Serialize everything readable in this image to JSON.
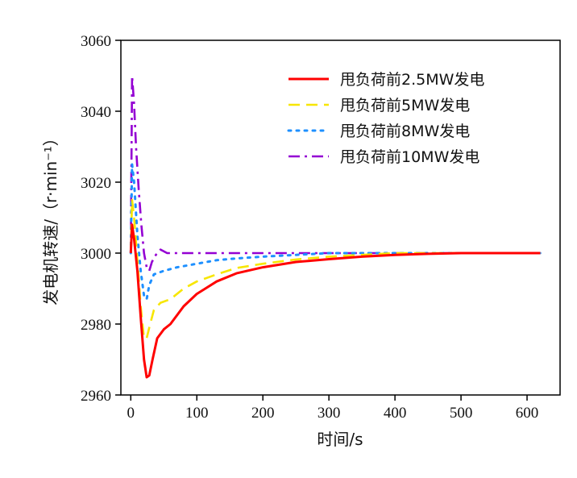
{
  "chart_data": {
    "type": "line",
    "title": "",
    "xlabel": "时间/s",
    "ylabel": "发电机转速/（r·min⁻¹）",
    "xlim": [
      -15,
      650
    ],
    "ylim": [
      2960,
      3060
    ],
    "xticks": [
      0,
      100,
      200,
      300,
      400,
      500,
      600
    ],
    "yticks": [
      2960,
      2980,
      3000,
      3020,
      3040,
      3060
    ],
    "x_tick_labels": [
      "0",
      "100",
      "200",
      "300",
      "400",
      "500",
      "600"
    ],
    "y_tick_labels": [
      "2960",
      "2980",
      "3000",
      "3020",
      "3040",
      "3060"
    ],
    "grid": false,
    "legend_position": "top-right",
    "series": [
      {
        "name": "甩负荷前2.5MW发电",
        "color": "#ff0000",
        "style": "solid",
        "points": [
          [
            0,
            3000
          ],
          [
            2,
            3008
          ],
          [
            5,
            3004
          ],
          [
            10,
            2995
          ],
          [
            15,
            2982
          ],
          [
            20,
            2970
          ],
          [
            24,
            2965
          ],
          [
            28,
            2965.5
          ],
          [
            33,
            2970
          ],
          [
            40,
            2976
          ],
          [
            50,
            2978.5
          ],
          [
            60,
            2980
          ],
          [
            80,
            2985
          ],
          [
            100,
            2988.5
          ],
          [
            130,
            2992
          ],
          [
            160,
            2994.3
          ],
          [
            200,
            2996
          ],
          [
            250,
            2997.5
          ],
          [
            300,
            2998.3
          ],
          [
            350,
            2999
          ],
          [
            400,
            2999.5
          ],
          [
            450,
            2999.8
          ],
          [
            500,
            3000
          ],
          [
            620,
            3000
          ]
        ]
      },
      {
        "name": "甩负荷前5MW发电",
        "color": "#f7e600",
        "style": "dashed",
        "points": [
          [
            0,
            3000
          ],
          [
            2,
            3015
          ],
          [
            5,
            3010
          ],
          [
            10,
            2998
          ],
          [
            15,
            2985
          ],
          [
            20,
            2976
          ],
          [
            24,
            2976
          ],
          [
            28,
            2979
          ],
          [
            35,
            2984
          ],
          [
            45,
            2986
          ],
          [
            60,
            2987
          ],
          [
            80,
            2990
          ],
          [
            100,
            2992
          ],
          [
            130,
            2994
          ],
          [
            160,
            2995.8
          ],
          [
            200,
            2997
          ],
          [
            250,
            2998.2
          ],
          [
            300,
            2999
          ],
          [
            350,
            2999.5
          ],
          [
            400,
            3000
          ],
          [
            620,
            3000
          ]
        ]
      },
      {
        "name": "甩负荷前8MW发电",
        "color": "#1e90ff",
        "style": "dotted",
        "points": [
          [
            0,
            3000
          ],
          [
            2,
            3025
          ],
          [
            5,
            3020
          ],
          [
            10,
            3005
          ],
          [
            15,
            2995
          ],
          [
            20,
            2988
          ],
          [
            24,
            2987
          ],
          [
            28,
            2991
          ],
          [
            35,
            2994
          ],
          [
            50,
            2995
          ],
          [
            70,
            2996
          ],
          [
            100,
            2997
          ],
          [
            130,
            2998
          ],
          [
            160,
            2998.5
          ],
          [
            200,
            2999
          ],
          [
            250,
            2999.5
          ],
          [
            300,
            3000
          ],
          [
            620,
            3000
          ]
        ]
      },
      {
        "name": "甩负荷前10MW发电",
        "color": "#9400d3",
        "style": "dashdot",
        "points": [
          [
            0,
            3000
          ],
          [
            2,
            3050
          ],
          [
            5,
            3042
          ],
          [
            8,
            3030
          ],
          [
            12,
            3018
          ],
          [
            16,
            3008
          ],
          [
            20,
            3000
          ],
          [
            24,
            2996
          ],
          [
            28,
            2995
          ],
          [
            32,
            2997.5
          ],
          [
            38,
            2999.5
          ],
          [
            45,
            3001
          ],
          [
            55,
            3000
          ],
          [
            620,
            3000
          ]
        ]
      }
    ]
  }
}
